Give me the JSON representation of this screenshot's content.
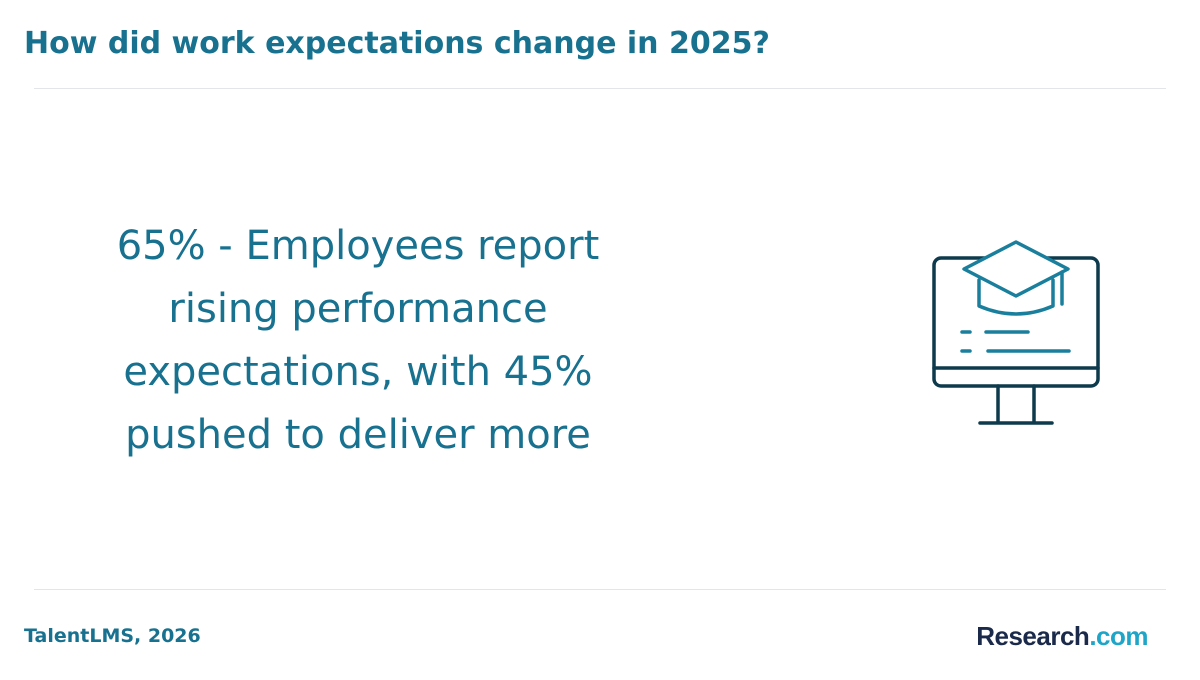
{
  "header": {
    "title": "How did work expectations change in 2025?"
  },
  "main": {
    "statement": "65% - Employees report rising performance expectations, with 45% pushed to deliver more",
    "illustration_icon": "computer-graduation-cap-icon"
  },
  "footer": {
    "source": "TalentLMS, 2026",
    "logo": {
      "word": "Research",
      "suffix": ".com"
    }
  },
  "colors": {
    "accent": "#17718f",
    "icon_dark": "#0d3a4c",
    "icon_accent": "#1a7f9c",
    "logo_dark": "#1b2a4a",
    "logo_accent": "#1ea5c8",
    "divider": "#e3e6e8"
  }
}
